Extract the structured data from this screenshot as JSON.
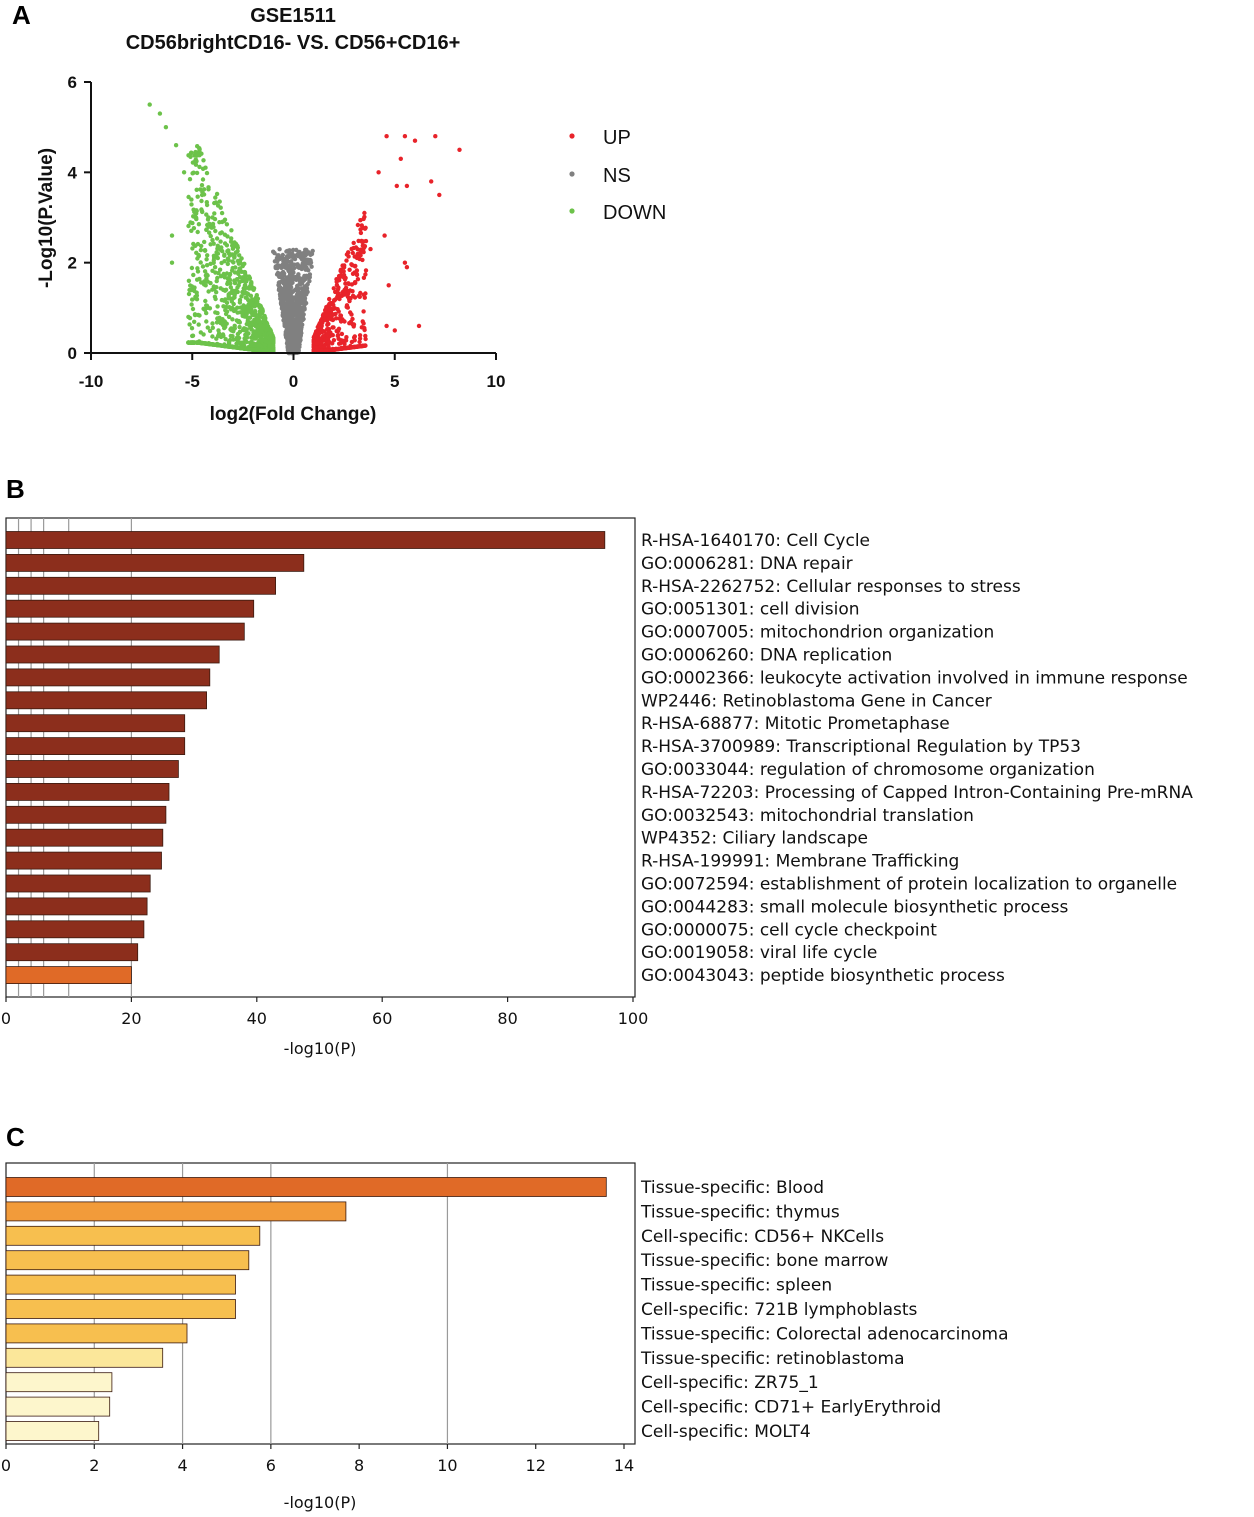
{
  "colors": {
    "up": "#e8232a",
    "ns": "#808080",
    "down": "#6cc24a",
    "bar_dark": "#8c2e1c",
    "bar_orange": "#e06a27",
    "bar_c1": "#e06a27",
    "bar_c2": "#f29b3a",
    "bar_c3": "#f7bf4f",
    "bar_c4": "#fbe79a",
    "bar_c5": "#fdf6cc"
  },
  "chart_data": [
    {
      "panel": "A",
      "type": "scatter",
      "title": "GSE1511",
      "subtitle": "CD56brightCD16- VS. CD56+CD16+",
      "xlabel": "log2(Fold Change)",
      "ylabel": "-Log10(P.Value)",
      "xlim": [
        -10,
        10
      ],
      "ylim": [
        0,
        6
      ],
      "xticks": [
        "-10",
        "-5",
        "0",
        "5",
        "10"
      ],
      "yticks": [
        "0",
        "2",
        "4",
        "6"
      ],
      "legend": [
        "UP",
        "NS",
        "DOWN"
      ],
      "legend_position": "right",
      "series_up": [
        [
          4.6,
          4.8
        ],
        [
          5.5,
          4.8
        ],
        [
          6.0,
          4.7
        ],
        [
          7.0,
          4.8
        ],
        [
          8.2,
          4.5
        ],
        [
          5.3,
          4.3
        ],
        [
          4.2,
          4.0
        ],
        [
          5.1,
          3.7
        ],
        [
          5.6,
          3.7
        ],
        [
          7.2,
          3.5
        ],
        [
          6.8,
          3.8
        ],
        [
          4.5,
          2.6
        ],
        [
          5.5,
          2.0
        ],
        [
          5.6,
          1.9
        ],
        [
          4.7,
          1.5
        ],
        [
          6.2,
          0.6
        ],
        [
          5.0,
          0.5
        ],
        [
          4.6,
          0.6
        ],
        [
          3.5,
          3.1
        ],
        [
          3.8,
          2.3
        ]
      ],
      "series_down": [
        [
          -7.1,
          5.5
        ],
        [
          -6.6,
          5.3
        ],
        [
          -6.3,
          5.0
        ],
        [
          -5.8,
          4.6
        ],
        [
          -6.0,
          2.0
        ],
        [
          -6.0,
          2.6
        ],
        [
          -5.4,
          4.0
        ],
        [
          -4.2,
          3.0
        ],
        [
          -4.0,
          2.5
        ]
      ],
      "ns_region": "|log2FC| < 1"
    },
    {
      "panel": "B",
      "type": "bar",
      "orientation": "horizontal",
      "xlabel": "-log10(P)",
      "xlim": [
        0,
        100
      ],
      "xticks": [
        "0",
        "20",
        "40",
        "60",
        "80",
        "100"
      ],
      "categories": [
        "R-HSA-1640170: Cell Cycle",
        "GO:0006281: DNA repair",
        "R-HSA-2262752: Cellular responses to stress",
        "GO:0051301: cell division",
        "GO:0007005: mitochondrion organization",
        "GO:0006260: DNA replication",
        "GO:0002366: leukocyte activation involved in immune response",
        "WP2446: Retinoblastoma Gene in Cancer",
        "R-HSA-68877: Mitotic Prometaphase",
        "R-HSA-3700989: Transcriptional Regulation by TP53",
        "GO:0033044: regulation of chromosome organization",
        "R-HSA-72203: Processing of Capped Intron-Containing Pre-mRNA",
        "GO:0032543: mitochondrial translation",
        "WP4352: Ciliary landscape",
        "R-HSA-199991: Membrane Trafficking",
        "GO:0072594: establishment of protein localization to organelle",
        "GO:0044283: small molecule biosynthetic process",
        "GO:0000075: cell cycle checkpoint",
        "GO:0019058: viral life cycle",
        "GO:0043043: peptide biosynthetic process"
      ],
      "values": [
        95.5,
        47.5,
        43,
        39.5,
        38,
        34,
        32.5,
        32,
        28.5,
        28.5,
        27.5,
        26,
        25.5,
        25,
        24.8,
        23,
        22.5,
        22,
        21,
        20
      ],
      "color_keys": [
        "bar_dark",
        "bar_dark",
        "bar_dark",
        "bar_dark",
        "bar_dark",
        "bar_dark",
        "bar_dark",
        "bar_dark",
        "bar_dark",
        "bar_dark",
        "bar_dark",
        "bar_dark",
        "bar_dark",
        "bar_dark",
        "bar_dark",
        "bar_dark",
        "bar_dark",
        "bar_dark",
        "bar_dark",
        "bar_orange"
      ],
      "gridlines": [
        2,
        4,
        6,
        10,
        20
      ]
    },
    {
      "panel": "C",
      "type": "bar",
      "orientation": "horizontal",
      "xlabel": "-log10(P)",
      "xlim": [
        0,
        14
      ],
      "xticks": [
        "0",
        "2",
        "4",
        "6",
        "8",
        "10",
        "12",
        "14"
      ],
      "categories": [
        "Tissue-specific: Blood",
        "Tissue-specific: thymus",
        "Cell-specific: CD56+ NKCells",
        "Tissue-specific: bone marrow",
        "Tissue-specific: spleen",
        "Cell-specific: 721B lymphoblasts",
        "Tissue-specific: Colorectal adenocarcinoma",
        "Tissue-specific: retinoblastoma",
        "Cell-specific: ZR75_1",
        "Cell-specific: CD71+ EarlyErythroid",
        "Cell-specific: MOLT4"
      ],
      "values": [
        13.6,
        7.7,
        5.75,
        5.5,
        5.2,
        5.2,
        4.1,
        3.55,
        2.4,
        2.35,
        2.1
      ],
      "color_keys": [
        "bar_c1",
        "bar_c2",
        "bar_c3",
        "bar_c3",
        "bar_c3",
        "bar_c3",
        "bar_c3",
        "bar_c4",
        "bar_c5",
        "bar_c5",
        "bar_c5"
      ],
      "gridlines": [
        2,
        4,
        6,
        10
      ]
    }
  ]
}
